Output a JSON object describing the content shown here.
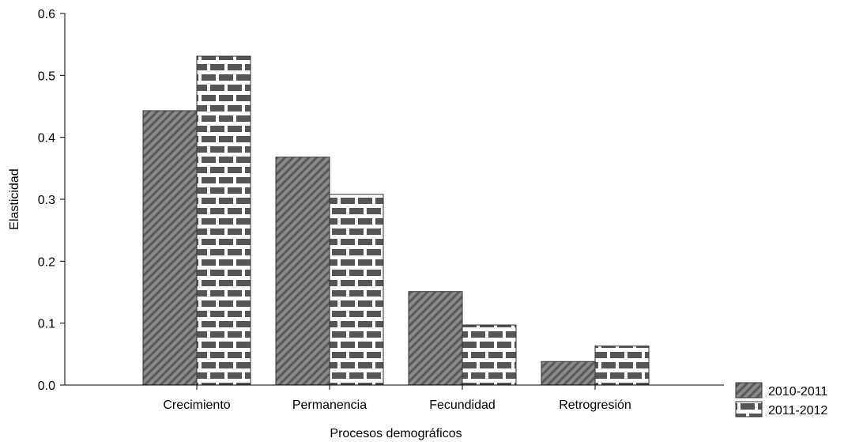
{
  "chart_data": {
    "type": "bar",
    "title": "",
    "xlabel": "Procesos demográficos",
    "ylabel": "Elasticidad",
    "categories": [
      "Crecimiento",
      "Permanencia",
      "Fecundidad",
      "Retrogresión"
    ],
    "series": [
      {
        "name": "2010-2011",
        "values": [
          0.443,
          0.368,
          0.151,
          0.038
        ],
        "pattern": "diagonal-hatch",
        "color": "#6e6e6e"
      },
      {
        "name": "2011-2012",
        "values": [
          0.531,
          0.308,
          0.097,
          0.063
        ],
        "pattern": "brick",
        "color": "#5a5a5a"
      }
    ],
    "yticks": [
      "0.0",
      "0.1",
      "0.2",
      "0.3",
      "0.4",
      "0.5",
      "0.6"
    ],
    "ylim": [
      0,
      0.6
    ],
    "grid": false,
    "legend_position": "bottom-right"
  }
}
